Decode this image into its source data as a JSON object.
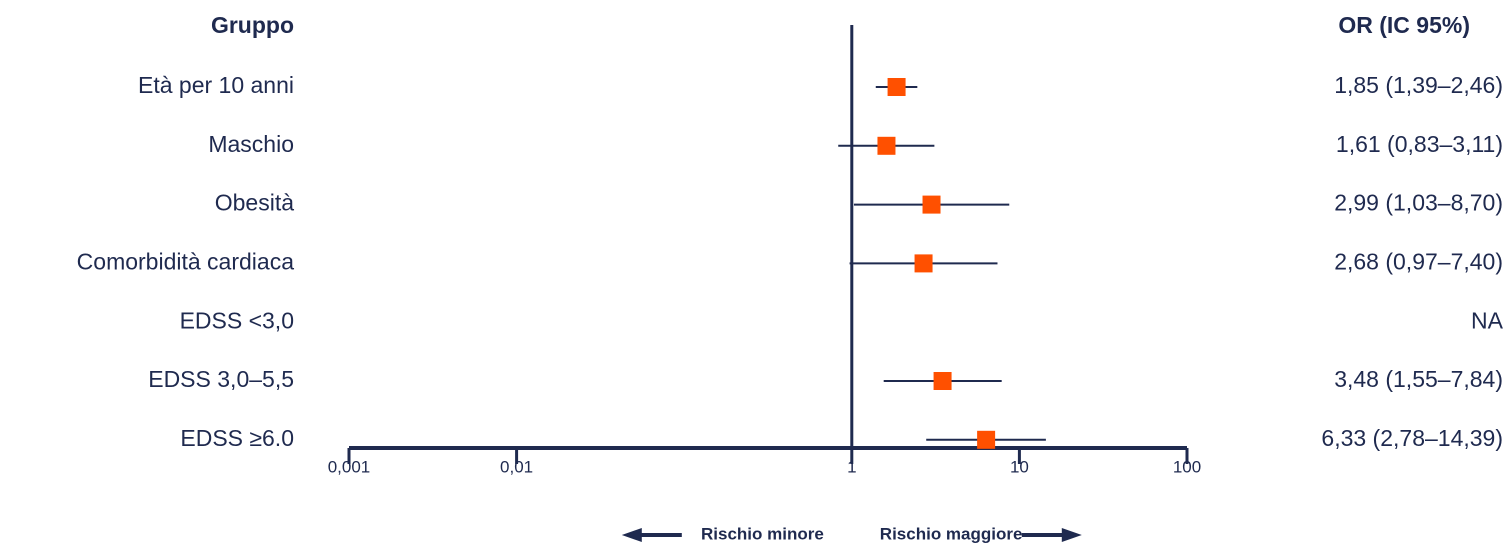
{
  "chart_data": {
    "type": "forest",
    "group_header": "Gruppo",
    "estimate_header": "OR (IC 95%)",
    "categories": [
      "Età per 10 anni",
      "Maschio",
      "Obesità",
      "Comorbidità cardiaca",
      "EDSS <3,0",
      "EDSS 3,0–5,5",
      "EDSS ≥6.0"
    ],
    "values": [
      1.85,
      1.61,
      2.99,
      2.68,
      null,
      3.48,
      6.33
    ],
    "lower": [
      1.39,
      0.83,
      1.03,
      0.97,
      null,
      1.55,
      2.78
    ],
    "upper": [
      2.46,
      3.11,
      8.7,
      7.4,
      null,
      7.84,
      14.39
    ],
    "value_labels": [
      "1,85 (1,39–2,46)",
      "1,61 (0,83–3,11)",
      "2,99 (1,03–8,70)",
      "2,68 (0,97–7,40)",
      "NA",
      "3,48 (1,55–7,84)",
      "6,33 (2,78–14,39)"
    ],
    "color": "#ff5000",
    "line_color": "#1f2a4f",
    "log_scale": true,
    "xlim": [
      0.001,
      100
    ],
    "xticks": [
      {
        "value": 0.001,
        "label": "0,001"
      },
      {
        "value": 0.01,
        "label": "0,01"
      },
      1,
      10,
      100
    ],
    "reference_line": 1,
    "left_annotation": "Rischio minore",
    "right_annotation": "Rischio maggiore"
  }
}
